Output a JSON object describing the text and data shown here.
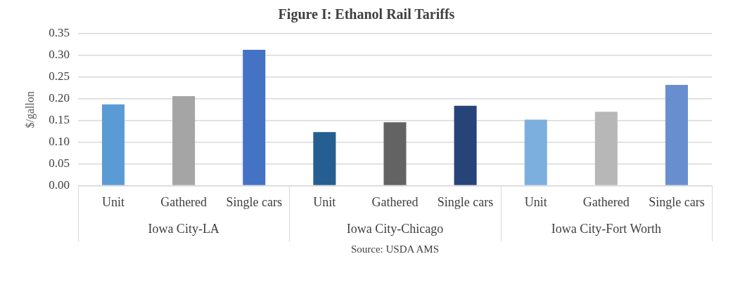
{
  "chart_data": {
    "type": "bar",
    "title": "Figure I: Ethanol Rail Tariffs",
    "ylabel": "$/gallon",
    "categories": [
      "Unit",
      "Gathered",
      "Single cars",
      "Unit",
      "Gathered",
      "Single cars",
      "Unit",
      "Gathered",
      "Single cars"
    ],
    "values": [
      0.187,
      0.206,
      0.313,
      0.123,
      0.146,
      0.184,
      0.152,
      0.17,
      0.232
    ],
    "colors": [
      "#5b9bd5",
      "#a5a5a5",
      "#4472c4",
      "#255e91",
      "#636363",
      "#264478",
      "#7cafdd",
      "#b7b7b7",
      "#698ed0"
    ],
    "ylim": [
      0,
      0.35
    ],
    "yticks": [
      {
        "value": 0,
        "label": "0.00"
      },
      {
        "value": 0.05,
        "label": "0.05"
      },
      {
        "value": 0.1,
        "label": "0.10"
      },
      {
        "value": 0.15,
        "label": "0.15"
      },
      {
        "value": 0.2,
        "label": "0.20"
      },
      {
        "value": 0.25,
        "label": "0.25"
      },
      {
        "value": 0.3,
        "label": "0.30"
      },
      {
        "value": 0.35,
        "label": "0.35"
      }
    ],
    "grid": "y",
    "legend": false,
    "annotations": [
      "Iowa City-LA",
      "Iowa City-Chicago",
      "Iowa City-Fort Worth",
      "Source: USDA AMS"
    ]
  }
}
